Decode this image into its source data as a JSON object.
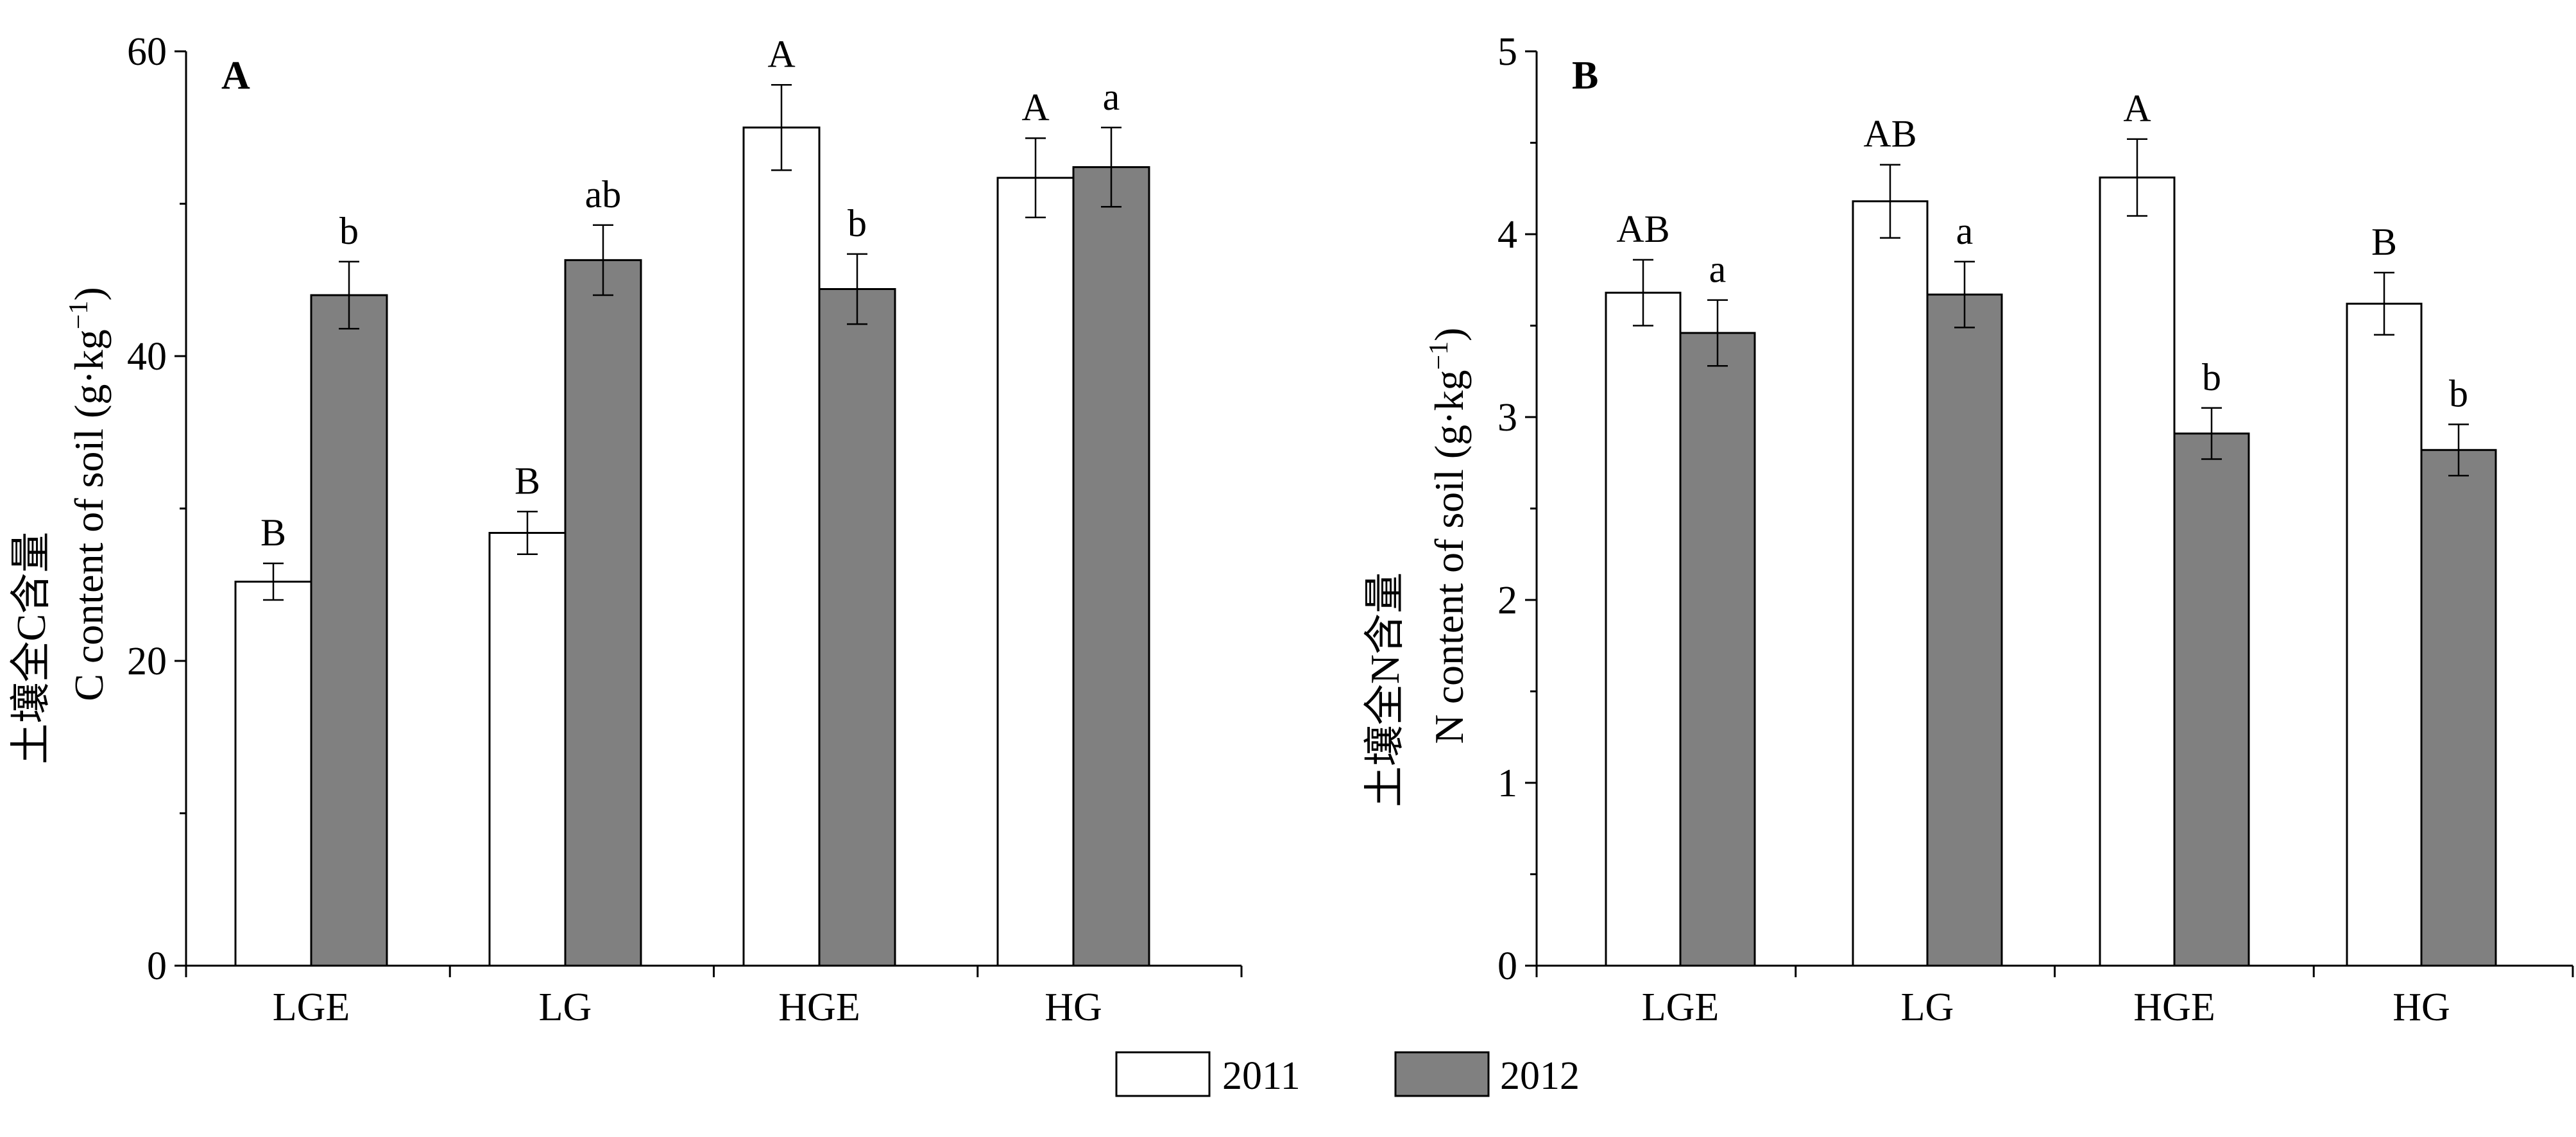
{
  "chart_data": [
    {
      "type": "bar",
      "panel_label": "A",
      "ylabel_lines": [
        "土壤全C含量",
        "C content of soil (g·kg",
        "−1",
        ")"
      ],
      "categories": [
        "LGE",
        "LG",
        "HGE",
        "HG"
      ],
      "ylim": [
        0,
        60
      ],
      "yticks": [
        0,
        20,
        40,
        60
      ],
      "yticks_minor": [
        10,
        30,
        50
      ],
      "series": [
        {
          "name": "2011",
          "values": [
            25.2,
            28.4,
            55.0,
            51.7
          ],
          "errors": [
            1.2,
            1.4,
            2.8,
            2.6
          ],
          "sig": [
            "B",
            "B",
            "A",
            "A"
          ]
        },
        {
          "name": "2012",
          "values": [
            44.0,
            46.3,
            44.4,
            52.4
          ],
          "errors": [
            2.2,
            2.3,
            2.3,
            2.6
          ],
          "sig": [
            "b",
            "ab",
            "b",
            "a"
          ]
        }
      ]
    },
    {
      "type": "bar",
      "panel_label": "B",
      "ylabel_lines": [
        "土壤全N含量",
        "N content of soil (g·kg",
        "−1",
        ")"
      ],
      "categories": [
        "LGE",
        "LG",
        "HGE",
        "HG"
      ],
      "ylim": [
        0,
        5
      ],
      "yticks": [
        0,
        1,
        2,
        3,
        4,
        5
      ],
      "yticks_minor": [
        0.5,
        1.5,
        2.5,
        3.5,
        4.5
      ],
      "series": [
        {
          "name": "2011",
          "values": [
            3.68,
            4.18,
            4.31,
            3.62
          ],
          "errors": [
            0.18,
            0.2,
            0.21,
            0.17
          ],
          "sig": [
            "AB",
            "AB",
            "A",
            "B"
          ]
        },
        {
          "name": "2012",
          "values": [
            3.46,
            3.67,
            2.91,
            2.82
          ],
          "errors": [
            0.18,
            0.18,
            0.14,
            0.14
          ],
          "sig": [
            "a",
            "a",
            "b",
            "b"
          ]
        }
      ]
    }
  ],
  "legend": [
    {
      "label": "2011",
      "color": "#ffffff"
    },
    {
      "label": "2012",
      "color": "#808080"
    }
  ],
  "colors": {
    "bar_2011": "#ffffff",
    "bar_2012": "#808080",
    "axis": "#000000"
  }
}
